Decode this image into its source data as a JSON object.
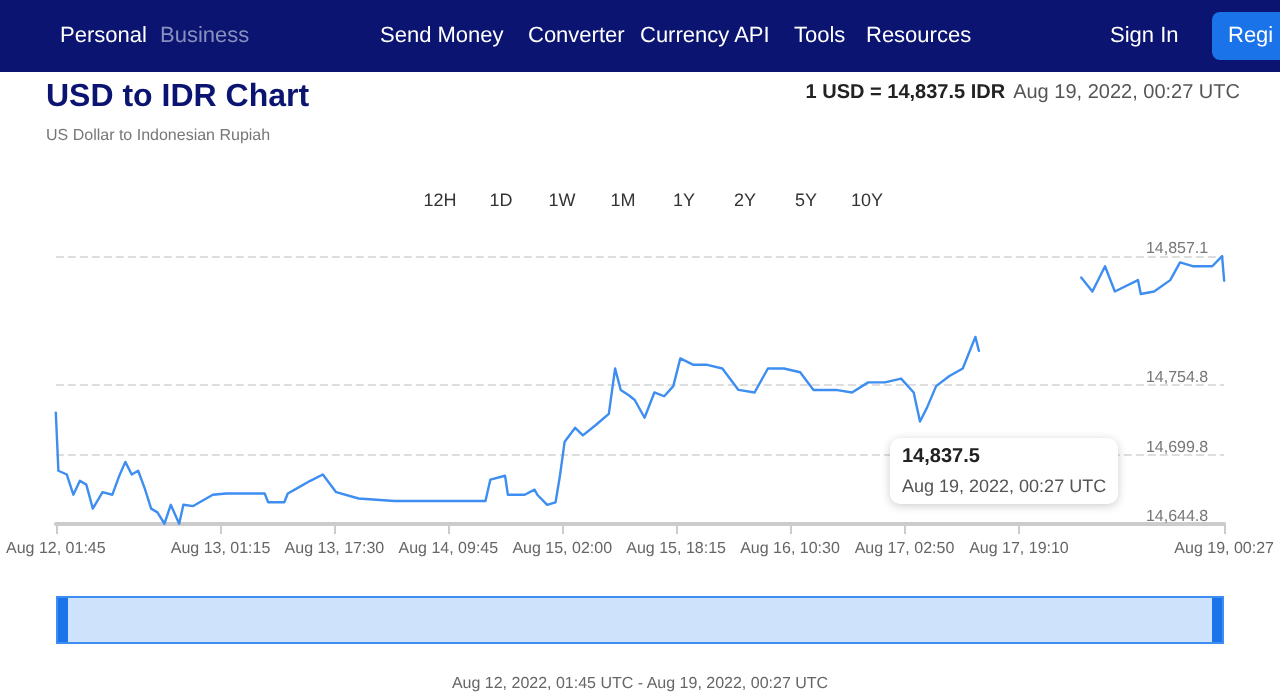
{
  "chart_data": {
    "type": "line",
    "title": "USD to IDR Chart",
    "subtitle": "US Dollar to Indonesian Rupiah",
    "annotations": [
      "Personal",
      "Business",
      "Send Money",
      "Converter",
      "Currency API",
      "Tools",
      "Resources",
      "Sign In",
      "Regi",
      "1 USD = 14,837.5 IDR",
      "Aug 19, 2022, 00:27 UTC",
      "12H",
      "1D",
      "1W",
      "1M",
      "1Y",
      "2Y",
      "5Y",
      "10Y",
      "14,837.5",
      "Aug 19, 2022, 00:27 UTC",
      "Aug 12, 2022, 01:45 UTC - Aug 19, 2022, 00:27 UTC"
    ],
    "x": [
      "2022-08-12T01:45",
      "2022-08-12T02:07",
      "2022-08-12T03:19",
      "2022-08-12T04:15",
      "2022-08-12T05:11",
      "2022-08-12T06:06",
      "2022-08-12T07:02",
      "2022-08-12T08:25",
      "2022-08-12T09:49",
      "2022-08-12T10:44",
      "2022-08-12T11:40",
      "2022-08-12T12:35",
      "2022-08-12T13:30",
      "2022-08-12T14:26",
      "2022-08-12T15:21",
      "2022-08-12T16:15",
      "2022-08-12T17:15",
      "2022-08-12T18:09",
      "2022-08-12T19:21",
      "2022-08-12T19:57",
      "2022-08-12T21:21",
      "2022-08-13T00:09",
      "2022-08-13T02:03",
      "2022-08-13T07:33",
      "2022-08-13T08:03",
      "2022-08-13T10:21",
      "2022-08-13T10:51",
      "2022-08-13T12:09",
      "2022-08-13T14:03",
      "2022-08-13T15:51",
      "2022-08-13T17:45",
      "2022-08-13T20:57",
      "2022-08-14T02:03",
      "2022-08-14T15:03",
      "2022-08-14T15:45",
      "2022-08-14T17:51",
      "2022-08-14T18:15",
      "2022-08-14T20:39",
      "2022-08-14T22:03",
      "2022-08-14T22:27",
      "2022-08-14T23:51",
      "2022-08-15T01:03",
      "2022-08-15T01:39",
      "2022-08-15T02:21",
      "2022-08-15T03:51",
      "2022-08-15T04:57",
      "2022-08-15T06:45",
      "2022-08-15T08:39",
      "2022-08-15T09:33",
      "2022-08-15T10:21",
      "2022-08-15T11:27",
      "2022-08-15T12:21",
      "2022-08-15T13:45",
      "2022-08-15T15:09",
      "2022-08-15T16:33",
      "2022-08-15T17:51",
      "2022-08-15T18:51",
      "2022-08-15T20:39",
      "2022-08-15T22:33",
      "2022-08-16T00:51",
      "2022-08-16T03:09",
      "2022-08-16T05:27",
      "2022-08-16T07:21",
      "2022-08-16T09:39",
      "2022-08-16T11:57",
      "2022-08-16T13:51",
      "2022-08-16T17:03",
      "2022-08-16T19:21",
      "2022-08-16T21:39",
      "2022-08-17T00:03",
      "2022-08-17T02:21",
      "2022-08-17T04:09",
      "2022-08-17T05:03",
      "2022-08-17T06:03",
      "2022-08-17T07:21",
      "2022-08-17T09:15",
      "2022-08-17T11:09",
      "2022-08-17T12:57",
      "2022-08-17T13:27",
      "2022-08-17T20:00",
      "2022-08-18T04:03",
      "2022-08-18T05:39",
      "2022-08-18T07:27",
      "2022-08-18T08:51",
      "2022-08-18T12:09",
      "2022-08-18T12:33",
      "2022-08-18T14:27",
      "2022-08-18T16:45",
      "2022-08-18T18:09",
      "2022-08-18T19:57",
      "2022-08-18T22:45",
      "2022-08-19T00:09",
      "2022-08-19T00:27"
    ],
    "series": [
      {
        "color": "#3d8ef0",
        "values": [
          14733,
          14687,
          14684,
          14668,
          14679,
          14676,
          14657,
          14670,
          14668,
          14682,
          14694,
          14684,
          14687,
          14673,
          14657,
          14654,
          14645,
          14660,
          14645,
          14660,
          14659,
          14668,
          14669,
          14669,
          14662,
          14662,
          14669,
          14673,
          14679,
          14684,
          14670,
          14665,
          14663,
          14663,
          14680,
          14683,
          14668,
          14668,
          14672,
          14668,
          14660,
          14662,
          14682,
          14710,
          14721,
          14715,
          14723,
          14732,
          14768,
          14751,
          14747,
          14743,
          14729,
          14749,
          14746,
          14754,
          14776,
          14771,
          14771,
          14768,
          14751,
          14749,
          14768,
          14768,
          14765,
          14751,
          14751,
          14749,
          14757,
          14757,
          14760,
          14749,
          14726,
          14737,
          14754,
          14762,
          14768,
          14793,
          14782,
          null,
          14840,
          14829,
          14849,
          14829,
          14838,
          14827,
          14829,
          14838,
          14852,
          14849,
          14849,
          14857,
          14837.5
        ]
      }
    ],
    "xlim": [
      "2022-08-12T01:45",
      "2022-08-19T00:27"
    ],
    "xticks": [
      {
        "value": "2022-08-12T01:45",
        "label": "Aug 12, 01:45"
      },
      {
        "value": "2022-08-13T01:15",
        "label": "Aug 13, 01:15"
      },
      {
        "value": "2022-08-13T17:30",
        "label": "Aug 13, 17:30"
      },
      {
        "value": "2022-08-14T09:45",
        "label": "Aug 14, 09:45"
      },
      {
        "value": "2022-08-15T02:00",
        "label": "Aug 15, 02:00"
      },
      {
        "value": "2022-08-15T18:15",
        "label": "Aug 15, 18:15"
      },
      {
        "value": "2022-08-16T10:30",
        "label": "Aug 16, 10:30"
      },
      {
        "value": "2022-08-17T02:50",
        "label": "Aug 17, 02:50"
      },
      {
        "value": "2022-08-17T19:10",
        "label": "Aug 17, 19:10"
      },
      {
        "value": "2022-08-19T00:27",
        "label": "Aug 19, 00:27"
      }
    ],
    "ylim": [
      14644.8,
      14857.1
    ],
    "yticks": [
      {
        "value": 14644.8,
        "label": "14,644.8"
      },
      {
        "value": 14699.8,
        "label": "14,699.8"
      },
      {
        "value": 14754.8,
        "label": "14,754.8"
      },
      {
        "value": 14857.1,
        "label": "14,857.1"
      }
    ],
    "grid": "y",
    "marker": "none",
    "line_style": "solid"
  }
}
